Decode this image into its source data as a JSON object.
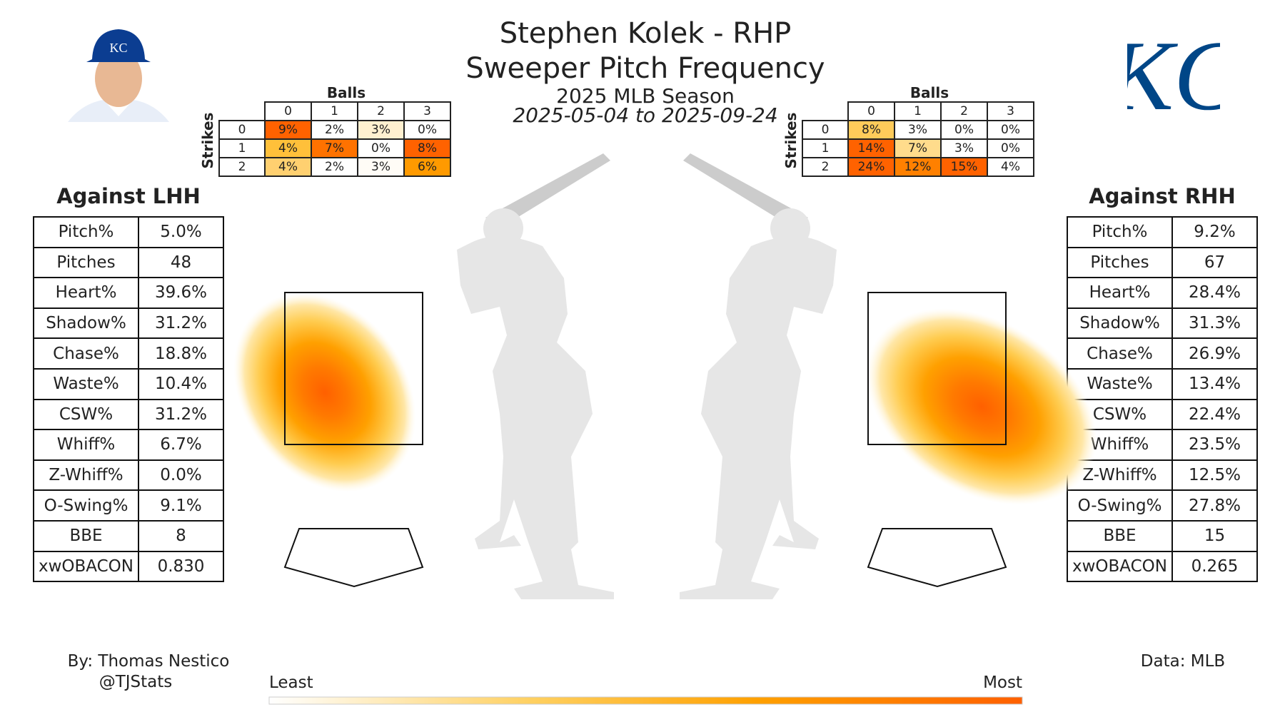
{
  "header": {
    "title": "Stephen Kolek - RHP",
    "subtitle": "Sweeper Pitch Frequency",
    "season": "2025 MLB Season",
    "dates": "2025-05-04 to 2025-09-24"
  },
  "logo": {
    "team": "KC",
    "color": "#004687"
  },
  "chart_data": [
    {
      "type": "table",
      "title": "Balls",
      "ylabel": "Strikes",
      "balls": [
        "0",
        "1",
        "2",
        "3"
      ],
      "strikes": [
        "0",
        "1",
        "2"
      ],
      "values": [
        [
          "9%",
          "2%",
          "3%",
          "0%"
        ],
        [
          "4%",
          "7%",
          "0%",
          "8%"
        ],
        [
          "4%",
          "2%",
          "3%",
          "6%"
        ]
      ],
      "colors": [
        [
          "#ff6200",
          "#ffffff",
          "#fff0d0",
          "#ffffff"
        ],
        [
          "#ffc03a",
          "#ff7200",
          "#ffffff",
          "#ff6200"
        ],
        [
          "#ffd070",
          "#ffffff",
          "#fffcf6",
          "#ff9a00"
        ]
      ]
    },
    {
      "type": "table",
      "title": "Balls",
      "ylabel": "Strikes",
      "balls": [
        "0",
        "1",
        "2",
        "3"
      ],
      "strikes": [
        "0",
        "1",
        "2"
      ],
      "values": [
        [
          "8%",
          "3%",
          "0%",
          "0%"
        ],
        [
          "14%",
          "7%",
          "3%",
          "0%"
        ],
        [
          "24%",
          "12%",
          "15%",
          "4%"
        ]
      ],
      "colors": [
        [
          "#ffcb5a",
          "#ffffff",
          "#ffffff",
          "#ffffff"
        ],
        [
          "#ff6200",
          "#ffdc8c",
          "#ffffff",
          "#ffffff"
        ],
        [
          "#ff6200",
          "#ff8000",
          "#ff6200",
          "#ffffff"
        ]
      ]
    },
    {
      "type": "heatmap",
      "side": "LHH",
      "peak": "inside-middle"
    },
    {
      "type": "heatmap",
      "side": "RHH",
      "peak": "away-middle"
    }
  ],
  "lhh": {
    "heading": "Against LHH",
    "rows": [
      [
        "Pitch%",
        "5.0%"
      ],
      [
        "Pitches",
        "48"
      ],
      [
        "Heart%",
        "39.6%"
      ],
      [
        "Shadow%",
        "31.2%"
      ],
      [
        "Chase%",
        "18.8%"
      ],
      [
        "Waste%",
        "10.4%"
      ],
      [
        "CSW%",
        "31.2%"
      ],
      [
        "Whiff%",
        "6.7%"
      ],
      [
        "Z-Whiff%",
        "0.0%"
      ],
      [
        "O-Swing%",
        "9.1%"
      ],
      [
        "BBE",
        "8"
      ],
      [
        "xwOBACON",
        "0.830"
      ]
    ]
  },
  "rhh": {
    "heading": "Against RHH",
    "rows": [
      [
        "Pitch%",
        "9.2%"
      ],
      [
        "Pitches",
        "67"
      ],
      [
        "Heart%",
        "28.4%"
      ],
      [
        "Shadow%",
        "31.3%"
      ],
      [
        "Chase%",
        "26.9%"
      ],
      [
        "Waste%",
        "13.4%"
      ],
      [
        "CSW%",
        "22.4%"
      ],
      [
        "Whiff%",
        "23.5%"
      ],
      [
        "Z-Whiff%",
        "12.5%"
      ],
      [
        "O-Swing%",
        "27.8%"
      ],
      [
        "BBE",
        "15"
      ],
      [
        "xwOBACON",
        "0.265"
      ]
    ]
  },
  "footer": {
    "author": "By: Thomas Nestico",
    "handle": "@TJStats",
    "source": "Data: MLB"
  },
  "colorbar": {
    "low": "Least",
    "high": "Most",
    "colors": [
      "#ffffff",
      "#ffd060",
      "#ffa000",
      "#ff6000"
    ]
  }
}
